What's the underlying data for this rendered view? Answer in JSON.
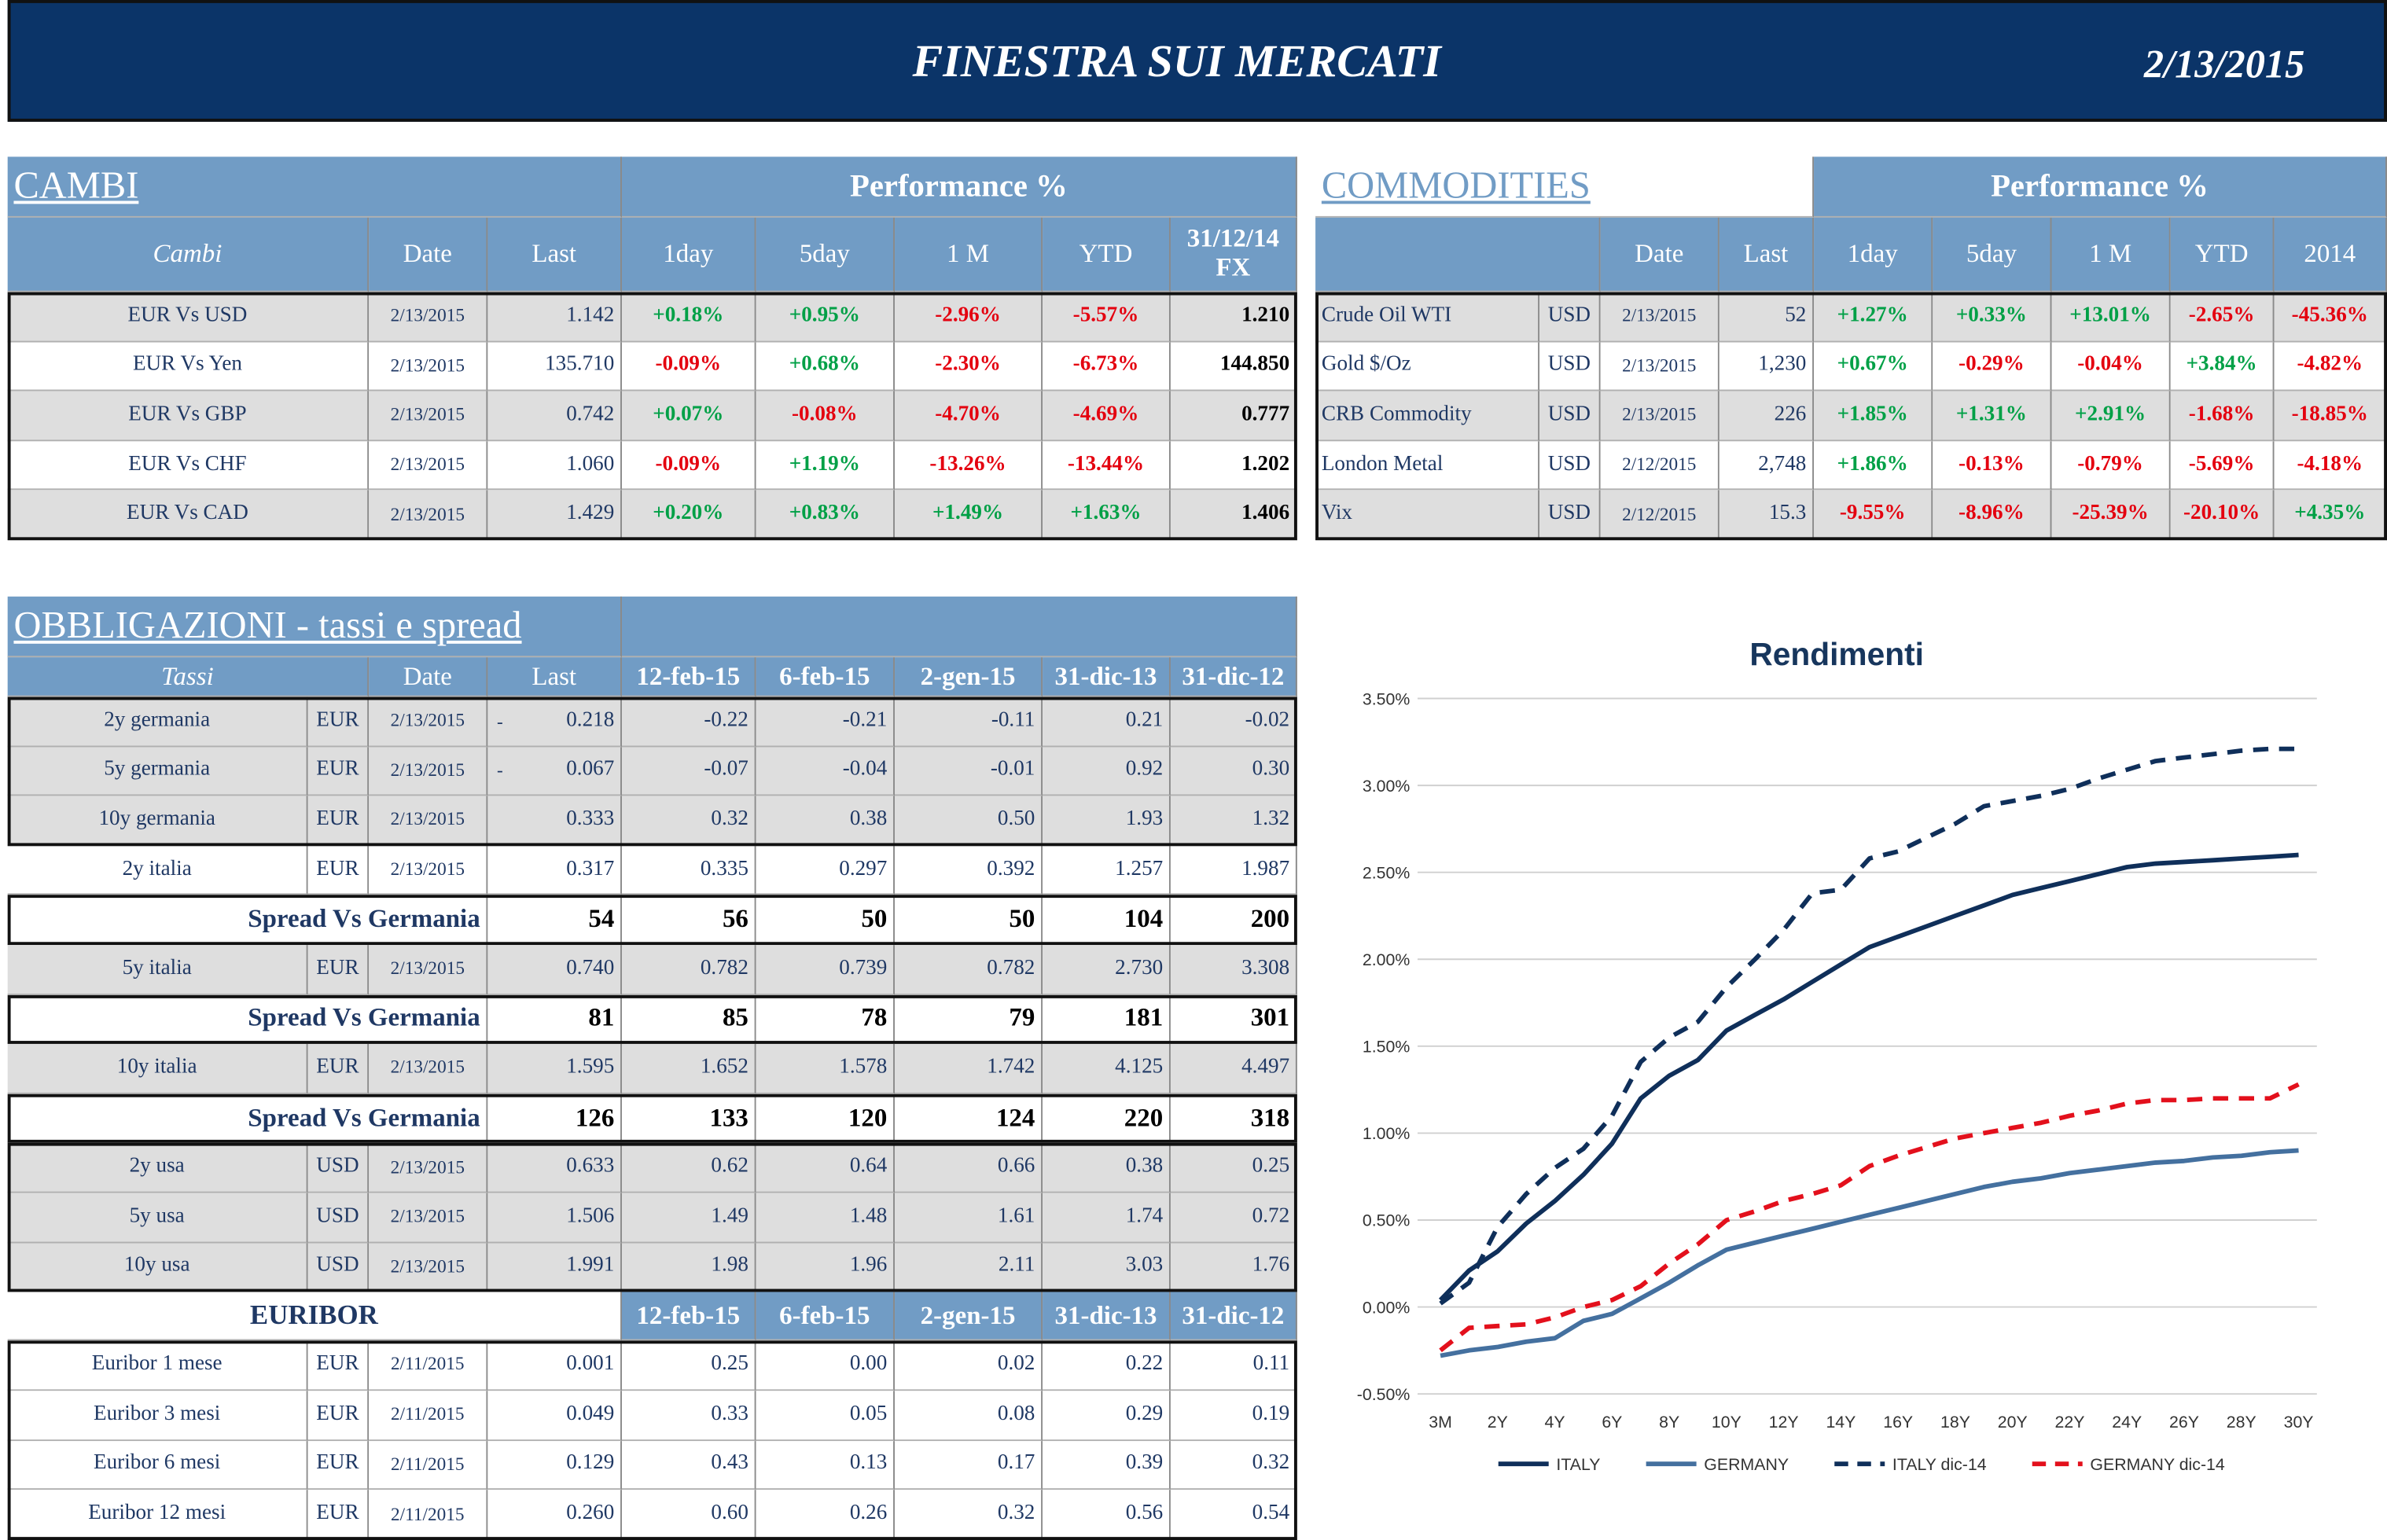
{
  "header": {
    "title": "FINESTRA SUI MERCATI",
    "date": "2/13/2015"
  },
  "cambi": {
    "title": "CAMBI",
    "perf_header": "Performance  %",
    "columns": [
      "Cambi",
      "Date",
      "Last",
      "1day",
      "5day",
      "1 M",
      "YTD",
      "31/12/14 FX"
    ],
    "rows": [
      [
        "EUR Vs USD",
        "2/13/2015",
        "1.142",
        "+0.18%",
        "+0.95%",
        "-2.96%",
        "-5.57%",
        "1.210"
      ],
      [
        "EUR Vs Yen",
        "2/13/2015",
        "135.710",
        "-0.09%",
        "+0.68%",
        "-2.30%",
        "-6.73%",
        "144.850"
      ],
      [
        "EUR Vs GBP",
        "2/13/2015",
        "0.742",
        "+0.07%",
        "-0.08%",
        "-4.70%",
        "-4.69%",
        "0.777"
      ],
      [
        "EUR Vs CHF",
        "2/13/2015",
        "1.060",
        "-0.09%",
        "+1.19%",
        "-13.26%",
        "-13.44%",
        "1.202"
      ],
      [
        "EUR Vs CAD",
        "2/13/2015",
        "1.429",
        "+0.20%",
        "+0.83%",
        "+1.49%",
        "+1.63%",
        "1.406"
      ]
    ]
  },
  "commodities": {
    "title": "COMMODITIES",
    "perf_header": "Performance  %",
    "columns": [
      "Date",
      "Last",
      "1day",
      "5day",
      "1 M",
      "YTD",
      "2014"
    ],
    "rows": [
      [
        "Crude Oil WTI",
        "USD",
        "2/13/2015",
        "52",
        "+1.27%",
        "+0.33%",
        "+13.01%",
        "-2.65%",
        "-45.36%"
      ],
      [
        "Gold $/Oz",
        "USD",
        "2/13/2015",
        "1,230",
        "+0.67%",
        "-0.29%",
        "-0.04%",
        "+3.84%",
        "-4.82%"
      ],
      [
        "CRB Commodity",
        "USD",
        "2/13/2015",
        "226",
        "+1.85%",
        "+1.31%",
        "+2.91%",
        "-1.68%",
        "-18.85%"
      ],
      [
        "London Metal",
        "USD",
        "2/12/2015",
        "2,748",
        "+1.86%",
        "-0.13%",
        "-0.79%",
        "-5.69%",
        "-4.18%"
      ],
      [
        "Vix",
        "USD",
        "2/12/2015",
        "15.3",
        "-9.55%",
        "-8.96%",
        "-25.39%",
        "-20.10%",
        "+4.35%"
      ]
    ]
  },
  "bonds": {
    "title": "OBBLIGAZIONI - tassi e spread",
    "columns": [
      "Tassi",
      "Date",
      "Last",
      "12-feb-15",
      "6-feb-15",
      "2-gen-15",
      "31-dic-13",
      "31-dic-12"
    ],
    "rows": [
      {
        "cells": [
          "2y germania",
          "EUR",
          "2/13/2015",
          "0.218",
          "-0.22",
          "-0.21",
          "-0.11",
          "0.21",
          "-0.02"
        ],
        "mark": "-"
      },
      {
        "cells": [
          "5y germania",
          "EUR",
          "2/13/2015",
          "0.067",
          "-0.07",
          "-0.04",
          "-0.01",
          "0.92",
          "0.30"
        ],
        "mark": "-"
      },
      {
        "cells": [
          "10y germania",
          "EUR",
          "2/13/2015",
          "0.333",
          "0.32",
          "0.38",
          "0.50",
          "1.93",
          "1.32"
        ]
      },
      {
        "cells": [
          "2y italia",
          "EUR",
          "2/13/2015",
          "0.317",
          "0.335",
          "0.297",
          "0.392",
          "1.257",
          "1.987"
        ]
      },
      {
        "spread": [
          "Spread Vs Germania",
          "54",
          "56",
          "50",
          "50",
          "104",
          "200"
        ]
      },
      {
        "cells": [
          "5y italia",
          "EUR",
          "2/13/2015",
          "0.740",
          "0.782",
          "0.739",
          "0.782",
          "2.730",
          "3.308"
        ]
      },
      {
        "spread": [
          "Spread Vs Germania",
          "81",
          "85",
          "78",
          "79",
          "181",
          "301"
        ]
      },
      {
        "cells": [
          "10y italia",
          "EUR",
          "2/13/2015",
          "1.595",
          "1.652",
          "1.578",
          "1.742",
          "4.125",
          "4.497"
        ]
      },
      {
        "spread": [
          "Spread Vs Germania",
          "126",
          "133",
          "120",
          "124",
          "220",
          "318"
        ]
      },
      {
        "cells": [
          "2y usa",
          "USD",
          "2/13/2015",
          "0.633",
          "0.62",
          "0.64",
          "0.66",
          "0.38",
          "0.25"
        ]
      },
      {
        "cells": [
          "5y usa",
          "USD",
          "2/13/2015",
          "1.506",
          "1.49",
          "1.48",
          "1.61",
          "1.74",
          "0.72"
        ]
      },
      {
        "cells": [
          "10y usa",
          "USD",
          "2/13/2015",
          "1.991",
          "1.98",
          "1.96",
          "2.11",
          "3.03",
          "1.76"
        ]
      }
    ]
  },
  "euribor": {
    "title": "EURIBOR",
    "columns": [
      "12-feb-15",
      "6-feb-15",
      "2-gen-15",
      "31-dic-13",
      "31-dic-12"
    ],
    "rows": [
      [
        "Euribor 1 mese",
        "EUR",
        "2/11/2015",
        "0.001",
        "0.25",
        "0.00",
        "0.02",
        "0.22",
        "0.11"
      ],
      [
        "Euribor 3 mesi",
        "EUR",
        "2/11/2015",
        "0.049",
        "0.33",
        "0.05",
        "0.08",
        "0.29",
        "0.19"
      ],
      [
        "Euribor 6 mesi",
        "EUR",
        "2/11/2015",
        "0.129",
        "0.43",
        "0.13",
        "0.17",
        "0.39",
        "0.32"
      ],
      [
        "Euribor 12 mesi",
        "EUR",
        "2/11/2015",
        "0.260",
        "0.60",
        "0.26",
        "0.32",
        "0.56",
        "0.54"
      ]
    ]
  },
  "chart_data": {
    "type": "line",
    "title": "Rendimenti",
    "categories": [
      "3M",
      null,
      "2Y",
      null,
      "4Y",
      null,
      "6Y",
      null,
      "8Y",
      null,
      "10Y",
      null,
      "12Y",
      null,
      "14Y",
      null,
      "16Y",
      null,
      "18Y",
      null,
      "20Y",
      null,
      "22Y",
      null,
      "24Y",
      null,
      "26Y",
      null,
      "28Y",
      null,
      "30Y"
    ],
    "ylim": [
      -0.5,
      3.5
    ],
    "yticks": [
      {
        "value": -0.5,
        "label": "-0.50%"
      },
      {
        "value": 0,
        "label": "0.00%"
      },
      {
        "value": 0.5,
        "label": "0.50%"
      },
      {
        "value": 1,
        "label": "1.00%"
      },
      {
        "value": 1.5,
        "label": "1.50%"
      },
      {
        "value": 2,
        "label": "2.00%"
      },
      {
        "value": 2.5,
        "label": "2.50%"
      },
      {
        "value": 3,
        "label": "3.00%"
      },
      {
        "value": 3.5,
        "label": "3.50%"
      }
    ],
    "grid": true,
    "legend": "bottom",
    "series": [
      {
        "name": "ITALY",
        "color": "#0f2f5a",
        "dashed": false,
        "values": [
          0.04,
          0.21,
          0.32,
          0.48,
          0.61,
          0.76,
          0.94,
          1.2,
          1.33,
          1.42,
          1.59,
          1.68,
          1.77,
          1.87,
          1.97,
          2.07,
          2.13,
          2.19,
          2.25,
          2.31,
          2.37,
          2.41,
          2.45,
          2.49,
          2.53,
          2.55,
          2.56,
          2.57,
          2.58,
          2.59,
          2.6
        ]
      },
      {
        "name": "GERMANY",
        "color": "#44709f",
        "dashed": false,
        "values": [
          -0.28,
          -0.25,
          -0.23,
          -0.2,
          -0.18,
          -0.08,
          -0.04,
          0.05,
          0.14,
          0.24,
          0.33,
          0.37,
          0.41,
          0.45,
          0.49,
          0.53,
          0.57,
          0.61,
          0.65,
          0.69,
          0.72,
          0.74,
          0.77,
          0.79,
          0.81,
          0.83,
          0.84,
          0.86,
          0.87,
          0.89,
          0.9
        ]
      },
      {
        "name": "ITALY dic-14",
        "color": "#0f2f5a",
        "dashed": true,
        "values": [
          0.02,
          0.14,
          0.46,
          0.65,
          0.8,
          0.91,
          1.1,
          1.41,
          1.55,
          1.64,
          1.84,
          2.0,
          2.17,
          2.38,
          2.4,
          2.58,
          2.62,
          2.7,
          2.78,
          2.88,
          2.91,
          2.94,
          2.98,
          3.04,
          3.09,
          3.14,
          3.16,
          3.18,
          3.2,
          3.21,
          3.21
        ]
      },
      {
        "name": "GERMANY dic-14",
        "color": "#e3101c",
        "dashed": true,
        "values": [
          -0.25,
          -0.12,
          -0.11,
          -0.1,
          -0.06,
          0.0,
          0.04,
          0.12,
          0.25,
          0.36,
          0.5,
          0.55,
          0.61,
          0.65,
          0.7,
          0.81,
          0.87,
          0.92,
          0.97,
          1.0,
          1.03,
          1.06,
          1.1,
          1.13,
          1.17,
          1.19,
          1.19,
          1.2,
          1.2,
          1.2,
          1.28
        ]
      }
    ]
  }
}
